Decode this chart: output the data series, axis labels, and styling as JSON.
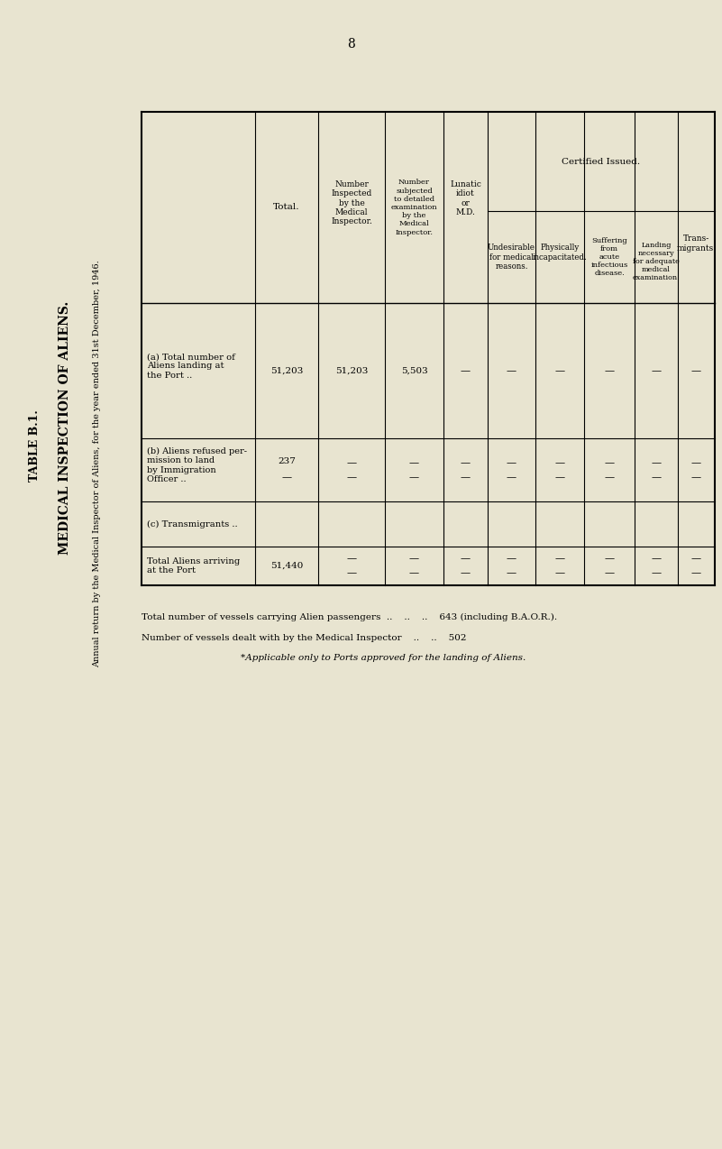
{
  "page_number": "8",
  "table_title": "TABLE B.1.",
  "table_subtitle": "MEDICAL INSPECTION OF ALIENS.",
  "table_subtitle2": "Annual return by the Medical Inspector of Aliens, for the year ended 31st December, 1946.",
  "background_color": "#e8e4d0",
  "certified_issued_label": "Certified Issued.",
  "col_headers": [
    "Total.",
    "Number\nInspected\nby the\nMedical\nInspector.",
    "Number\nsubjected\nto detailed\nexamination\nby the\nMedical\nInspector.",
    "Lunatic\nidiot\nor\nM.D.",
    "Undesirable\nfor medical\nreasons.",
    "Physically\nincapacitated.",
    "Suffering\nfrom\nacute\ninfectious\ndisease.",
    "Landing\nnecessary\nfor adequate\nmedical\nexamination.",
    "Trans-\nmigrants."
  ],
  "row_a_label": "(a) Total number of\nAliens landing at\nthe Port ..",
  "row_b_label": "(b) Aliens refused per-\nmission to land\nby Immigration\nOfficer ..",
  "row_c_label": "(c) Transmigrants ..",
  "total_row_label": "Total Aliens arriving\nat the Port",
  "row_a_data": [
    "51,203",
    "51,203",
    "5,503",
    "—",
    "—",
    "—",
    "—",
    "—",
    "—"
  ],
  "row_b_data": [
    "237",
    "—",
    "—",
    "—",
    "—",
    "—",
    "—",
    "—",
    "—"
  ],
  "row_b_data2": [
    "—",
    "—",
    "—",
    "—",
    "—",
    "—",
    "—",
    "—",
    "—"
  ],
  "row_c_data": [
    "",
    "",
    "",
    "",
    "",
    "",
    "",
    "",
    ""
  ],
  "total_data": [
    "51,440",
    "—",
    "—",
    "—",
    "—",
    "—",
    "—",
    "—",
    "—"
  ],
  "total_data2": [
    "",
    "—",
    "—",
    "—",
    "—",
    "—",
    "—",
    "—",
    "—"
  ],
  "footnote1": "Total number of vessels carrying Alien passengers  ..    ..    ..    643 (including B.A.O.R.).",
  "footnote2": "Number of vessels dealt with by the Medical Inspector    ..    ..    502",
  "footnote3": "*Applicable only to Ports approved for the landing of Aliens."
}
